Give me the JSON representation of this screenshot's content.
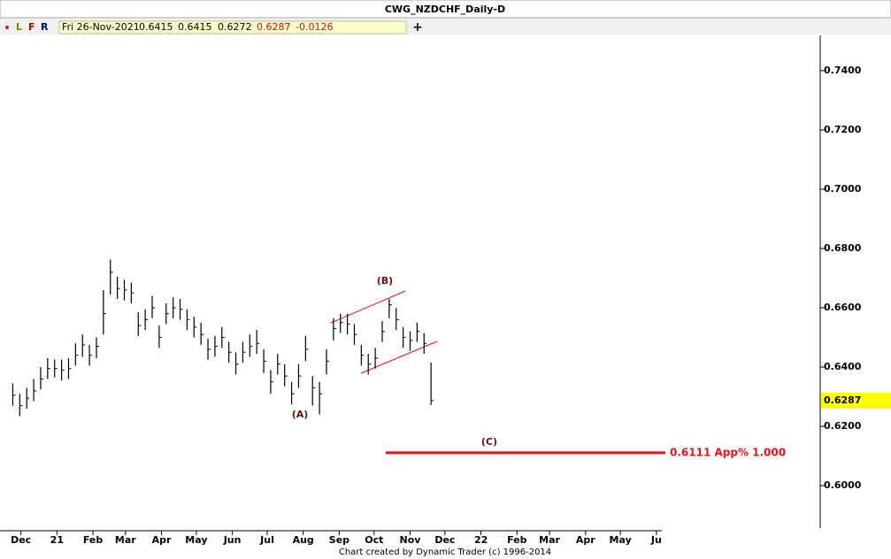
{
  "chart_data": {
    "type": "ohlc",
    "title": "CWG_NZDCHF_Daily-D",
    "toolbar": [
      "L",
      "F",
      "R",
      "+"
    ],
    "info": {
      "date": "Fri 26-Nov-2021",
      "open": 0.6415,
      "high": 0.6415,
      "low": 0.6272,
      "close": 0.6287,
      "change": -0.0126
    },
    "footer": "Chart created by Dynamic Trader  (c) 1996-2014",
    "color": "#000000",
    "x": [
      0,
      6,
      12,
      18,
      24,
      30,
      36,
      42,
      48,
      54,
      60,
      66,
      72,
      78,
      84,
      90,
      96,
      102,
      108,
      114,
      120,
      126,
      132,
      138,
      144,
      150,
      156,
      162,
      168,
      174,
      180,
      186,
      192,
      198,
      204,
      210,
      216,
      222,
      228,
      234,
      240,
      246,
      252,
      258,
      264,
      270,
      276,
      282,
      288,
      294,
      300,
      306,
      312,
      318,
      324,
      330,
      336,
      342,
      348,
      354,
      360
    ],
    "high": [
      0.6345,
      0.631,
      0.633,
      0.636,
      0.64,
      0.643,
      0.6425,
      0.6425,
      0.643,
      0.648,
      0.651,
      0.6475,
      0.65,
      0.666,
      0.6763,
      0.6705,
      0.6695,
      0.6685,
      0.6585,
      0.6595,
      0.664,
      0.654,
      0.6615,
      0.6635,
      0.663,
      0.6595,
      0.657,
      0.655,
      0.6495,
      0.6505,
      0.6535,
      0.6485,
      0.645,
      0.6485,
      0.651,
      0.6525,
      0.646,
      0.639,
      0.6445,
      0.641,
      0.635,
      0.641,
      0.6505,
      0.637,
      0.635,
      0.646,
      0.6565,
      0.658,
      0.658,
      0.6545,
      0.6475,
      0.6445,
      0.6465,
      0.6555,
      0.663,
      0.66,
      0.6535,
      0.652,
      0.655,
      0.6515,
      0.6415
    ],
    "low": [
      0.627,
      0.6235,
      0.626,
      0.6285,
      0.6325,
      0.636,
      0.6365,
      0.6355,
      0.636,
      0.6405,
      0.6435,
      0.6405,
      0.643,
      0.651,
      0.6645,
      0.663,
      0.6625,
      0.6615,
      0.6505,
      0.6525,
      0.6565,
      0.6465,
      0.6545,
      0.6565,
      0.656,
      0.6525,
      0.65,
      0.6475,
      0.6425,
      0.6435,
      0.6465,
      0.6415,
      0.6375,
      0.6415,
      0.6435,
      0.6445,
      0.638,
      0.631,
      0.6375,
      0.6335,
      0.6275,
      0.633,
      0.642,
      0.627,
      0.624,
      0.6375,
      0.649,
      0.6515,
      0.651,
      0.6475,
      0.6405,
      0.6375,
      0.6395,
      0.6485,
      0.6565,
      0.6525,
      0.6465,
      0.6455,
      0.6485,
      0.6445,
      0.6272
    ],
    "close": [
      0.6305,
      0.627,
      0.6295,
      0.632,
      0.636,
      0.6395,
      0.6395,
      0.639,
      0.6395,
      0.644,
      0.6475,
      0.644,
      0.647,
      0.658,
      0.672,
      0.6665,
      0.666,
      0.665,
      0.654,
      0.656,
      0.66,
      0.65,
      0.658,
      0.66,
      0.6595,
      0.656,
      0.6535,
      0.651,
      0.646,
      0.647,
      0.65,
      0.645,
      0.641,
      0.645,
      0.647,
      0.648,
      0.642,
      0.635,
      0.641,
      0.637,
      0.631,
      0.637,
      0.646,
      0.633,
      0.631,
      0.642,
      0.653,
      0.655,
      0.6545,
      0.651,
      0.644,
      0.641,
      0.643,
      0.652,
      0.661,
      0.656,
      0.65,
      0.649,
      0.652,
      0.648,
      0.6287
    ],
    "xlim": [
      -11,
      695
    ],
    "xticks": [
      {
        "value": 7,
        "label": "Dec"
      },
      {
        "value": 38,
        "label": "21"
      },
      {
        "value": 69,
        "label": "Feb"
      },
      {
        "value": 97,
        "label": "Mar"
      },
      {
        "value": 128,
        "label": "Apr"
      },
      {
        "value": 158,
        "label": "May"
      },
      {
        "value": 189,
        "label": "Jun"
      },
      {
        "value": 219,
        "label": "Jul"
      },
      {
        "value": 250,
        "label": "Aug"
      },
      {
        "value": 281,
        "label": "Sep"
      },
      {
        "value": 311,
        "label": "Oct"
      },
      {
        "value": 342,
        "label": "Nov"
      },
      {
        "value": 372,
        "label": "Dec"
      },
      {
        "value": 403,
        "label": "22"
      },
      {
        "value": 434,
        "label": "Feb"
      },
      {
        "value": 462,
        "label": "Mar"
      },
      {
        "value": 493,
        "label": "Apr"
      },
      {
        "value": 523,
        "label": "May"
      },
      {
        "value": 554,
        "label": "Ju"
      }
    ],
    "ylim": [
      0.5857,
      0.7519
    ],
    "yticks": [
      {
        "value": 0.74,
        "label": "0.7400"
      },
      {
        "value": 0.72,
        "label": "0.7200"
      },
      {
        "value": 0.7,
        "label": "0.7000"
      },
      {
        "value": 0.68,
        "label": "0.6800"
      },
      {
        "value": 0.66,
        "label": "0.6600"
      },
      {
        "value": 0.64,
        "label": "0.6400"
      },
      {
        "value": 0.62,
        "label": "0.6200"
      },
      {
        "value": 0.6,
        "label": "0.6000"
      }
    ],
    "annotations": [
      "(A)",
      "(B)",
      "(C)"
    ],
    "target": {
      "value": 0.6111,
      "label": "0.6111 App% 1.000",
      "color": "#e8141a"
    }
  }
}
